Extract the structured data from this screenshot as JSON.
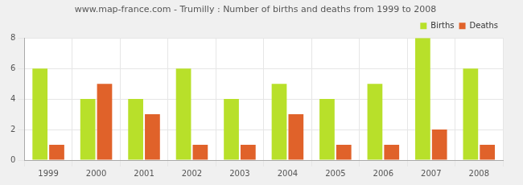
{
  "chart_data": {
    "type": "bar",
    "title": "www.map-france.com - Trumilly : Number of births and deaths from 1999 to 2008",
    "categories": [
      "1999",
      "2000",
      "2001",
      "2002",
      "2003",
      "2004",
      "2005",
      "2006",
      "2007",
      "2008"
    ],
    "series": [
      {
        "name": "Births",
        "color": "#b8e02a",
        "values": [
          6,
          4,
          4,
          6,
          4,
          5,
          4,
          5,
          8,
          6
        ]
      },
      {
        "name": "Deaths",
        "color": "#e0622a",
        "values": [
          1,
          5,
          3,
          1,
          1,
          3,
          1,
          1,
          2,
          1
        ]
      }
    ],
    "ylim": [
      0,
      8
    ],
    "yticks": [
      0,
      2,
      4,
      6,
      8
    ],
    "grid": true,
    "legend": "upper right"
  }
}
